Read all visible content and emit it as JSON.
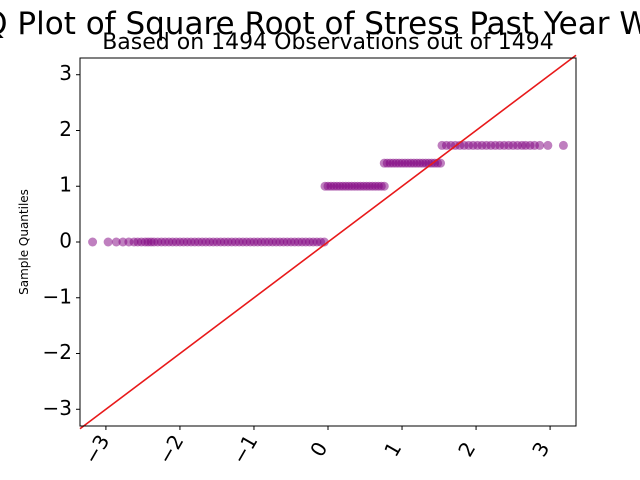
{
  "chart_data": {
    "type": "scatter",
    "title": "Q-Q Plot of Square Root of Stress Past Year Worry",
    "subtitle": "Based on 1494 Observations out of 1494",
    "xlabel": "",
    "ylabel": "Sample Quantiles",
    "xlim": [
      -3.35,
      3.35
    ],
    "ylim": [
      -3.3,
      3.3
    ],
    "xticks": [
      {
        "value": -3,
        "label": "−3"
      },
      {
        "value": -2,
        "label": "−2"
      },
      {
        "value": -1,
        "label": "−1"
      },
      {
        "value": 0,
        "label": "0"
      },
      {
        "value": 1,
        "label": "1"
      },
      {
        "value": 2,
        "label": "2"
      },
      {
        "value": 3,
        "label": "3"
      }
    ],
    "yticks": [
      {
        "value": -3,
        "label": "−3"
      },
      {
        "value": -2,
        "label": "−2"
      },
      {
        "value": -1,
        "label": "−1"
      },
      {
        "value": 0,
        "label": "0"
      },
      {
        "value": 1,
        "label": "1"
      },
      {
        "value": 2,
        "label": "2"
      },
      {
        "value": 3,
        "label": "3"
      }
    ],
    "grid": false,
    "marker_color": "#800080",
    "line_color": "#e8191a",
    "reference_line": {
      "slope": 1,
      "intercept": 0
    },
    "series": [
      {
        "points": [
          [
            -3.18,
            0
          ],
          [
            -2.97,
            0
          ],
          [
            -2.86,
            0
          ],
          [
            -2.77,
            0
          ],
          [
            -2.69,
            0
          ],
          [
            -2.62,
            0
          ],
          [
            -2.57,
            0
          ],
          [
            -2.52,
            0
          ],
          [
            -2.47,
            0
          ],
          [
            -2.43,
            0
          ],
          [
            -2.39,
            0
          ],
          [
            -2.35,
            0
          ],
          [
            -2.3,
            0
          ],
          [
            -2.25,
            0
          ],
          [
            -2.2,
            0
          ],
          [
            -2.15,
            0
          ],
          [
            -2.1,
            0
          ],
          [
            -2.05,
            0
          ],
          [
            -2.0,
            0
          ],
          [
            -1.95,
            0
          ],
          [
            -1.9,
            0
          ],
          [
            -1.85,
            0
          ],
          [
            -1.8,
            0
          ],
          [
            -1.75,
            0
          ],
          [
            -1.7,
            0
          ],
          [
            -1.65,
            0
          ],
          [
            -1.6,
            0
          ],
          [
            -1.55,
            0
          ],
          [
            -1.5,
            0
          ],
          [
            -1.45,
            0
          ],
          [
            -1.4,
            0
          ],
          [
            -1.35,
            0
          ],
          [
            -1.3,
            0
          ],
          [
            -1.25,
            0
          ],
          [
            -1.2,
            0
          ],
          [
            -1.15,
            0
          ],
          [
            -1.1,
            0
          ],
          [
            -1.05,
            0
          ],
          [
            -1.0,
            0
          ],
          [
            -0.95,
            0
          ],
          [
            -0.9,
            0
          ],
          [
            -0.85,
            0
          ],
          [
            -0.8,
            0
          ],
          [
            -0.75,
            0
          ],
          [
            -0.7,
            0
          ],
          [
            -0.65,
            0
          ],
          [
            -0.6,
            0
          ],
          [
            -0.55,
            0
          ],
          [
            -0.5,
            0
          ],
          [
            -0.45,
            0
          ],
          [
            -0.4,
            0
          ],
          [
            -0.35,
            0
          ],
          [
            -0.3,
            0
          ],
          [
            -0.25,
            0
          ],
          [
            -0.2,
            0
          ],
          [
            -0.15,
            0
          ],
          [
            -0.1,
            0
          ],
          [
            -0.05,
            0
          ],
          [
            -0.04,
            1
          ],
          [
            0.0,
            1
          ],
          [
            0.04,
            1
          ],
          [
            0.08,
            1
          ],
          [
            0.12,
            1
          ],
          [
            0.16,
            1
          ],
          [
            0.2,
            1
          ],
          [
            0.24,
            1
          ],
          [
            0.28,
            1
          ],
          [
            0.32,
            1
          ],
          [
            0.36,
            1
          ],
          [
            0.4,
            1
          ],
          [
            0.44,
            1
          ],
          [
            0.48,
            1
          ],
          [
            0.52,
            1
          ],
          [
            0.56,
            1
          ],
          [
            0.6,
            1
          ],
          [
            0.64,
            1
          ],
          [
            0.68,
            1
          ],
          [
            0.72,
            1
          ],
          [
            0.76,
            1
          ],
          [
            0.76,
            1.414
          ],
          [
            0.8,
            1.414
          ],
          [
            0.84,
            1.414
          ],
          [
            0.88,
            1.414
          ],
          [
            0.92,
            1.414
          ],
          [
            0.96,
            1.414
          ],
          [
            1.0,
            1.414
          ],
          [
            1.04,
            1.414
          ],
          [
            1.08,
            1.414
          ],
          [
            1.12,
            1.414
          ],
          [
            1.16,
            1.414
          ],
          [
            1.2,
            1.414
          ],
          [
            1.24,
            1.414
          ],
          [
            1.28,
            1.414
          ],
          [
            1.32,
            1.414
          ],
          [
            1.36,
            1.414
          ],
          [
            1.4,
            1.414
          ],
          [
            1.44,
            1.414
          ],
          [
            1.48,
            1.414
          ],
          [
            1.52,
            1.414
          ],
          [
            1.54,
            1.732
          ],
          [
            1.6,
            1.732
          ],
          [
            1.66,
            1.732
          ],
          [
            1.72,
            1.732
          ],
          [
            1.78,
            1.732
          ],
          [
            1.84,
            1.732
          ],
          [
            1.9,
            1.732
          ],
          [
            1.96,
            1.732
          ],
          [
            2.02,
            1.732
          ],
          [
            2.08,
            1.732
          ],
          [
            2.14,
            1.732
          ],
          [
            2.2,
            1.732
          ],
          [
            2.26,
            1.732
          ],
          [
            2.32,
            1.732
          ],
          [
            2.38,
            1.732
          ],
          [
            2.44,
            1.732
          ],
          [
            2.5,
            1.732
          ],
          [
            2.56,
            1.732
          ],
          [
            2.62,
            1.732
          ],
          [
            2.67,
            1.732
          ],
          [
            2.73,
            1.732
          ],
          [
            2.79,
            1.732
          ],
          [
            2.86,
            1.732
          ],
          [
            2.97,
            1.732
          ],
          [
            3.18,
            1.732
          ]
        ]
      }
    ]
  }
}
